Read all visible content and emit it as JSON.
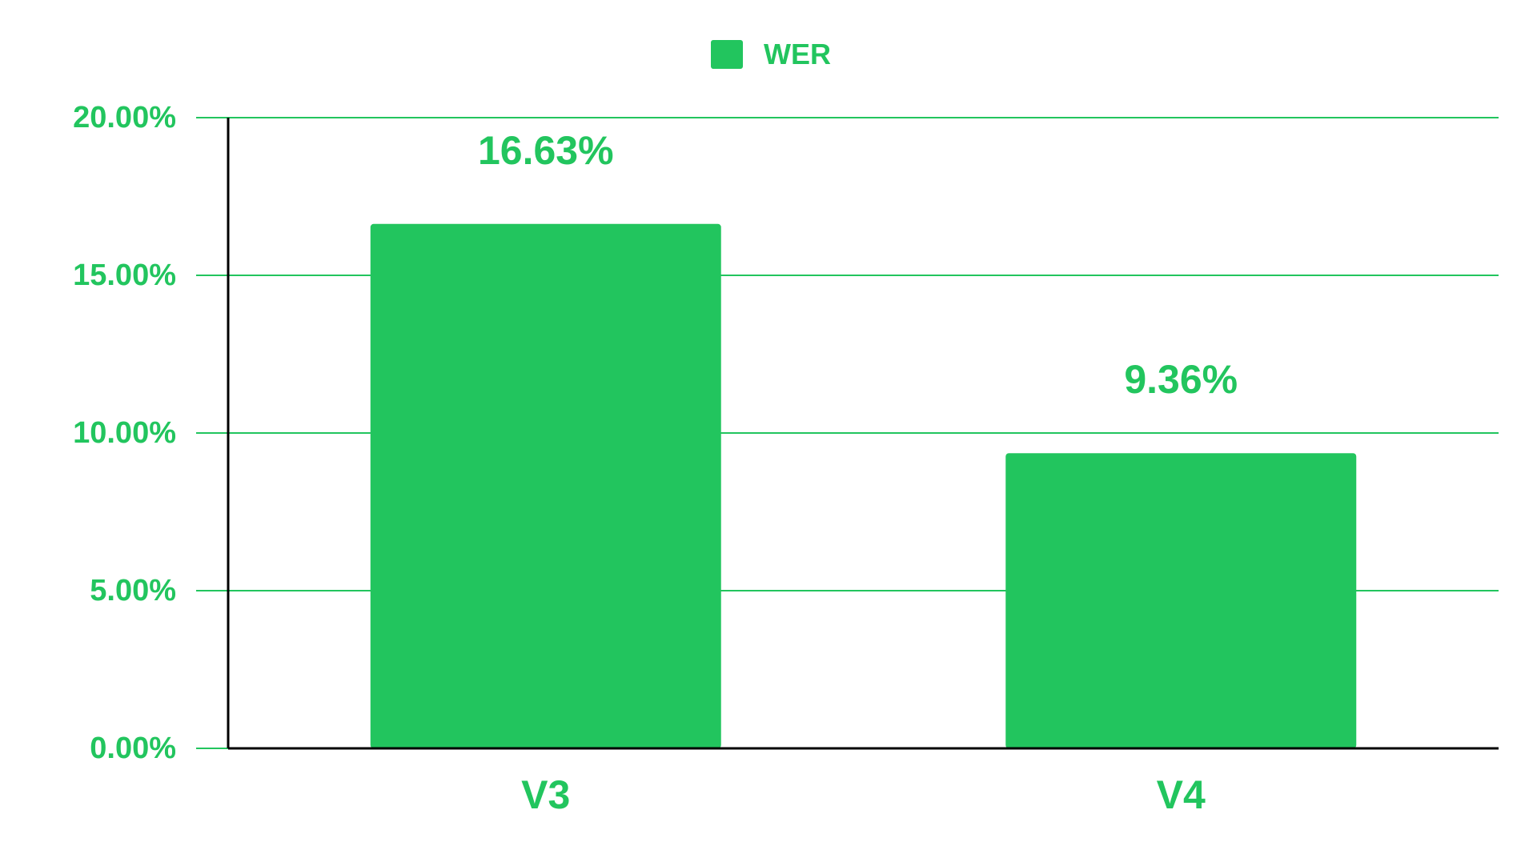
{
  "chart_data": {
    "type": "bar",
    "categories": [
      "V3",
      "V4"
    ],
    "series": [
      {
        "name": "WER",
        "values": [
          16.63,
          9.36
        ],
        "data_labels": [
          "16.63%",
          "9.36%"
        ]
      }
    ],
    "title": "",
    "xlabel": "",
    "ylabel": "",
    "ylim": [
      0,
      20
    ],
    "yticks": [
      0,
      5,
      10,
      15,
      20
    ],
    "ytick_labels": [
      "0.00%",
      "5.00%",
      "10.00%",
      "15.00%",
      "20.00%"
    ],
    "grid": true,
    "legend_position": "top-center",
    "colors": {
      "bar": "#22c55e",
      "text": "#22c55e",
      "grid": "#22c55e",
      "axis": "#000000"
    }
  }
}
